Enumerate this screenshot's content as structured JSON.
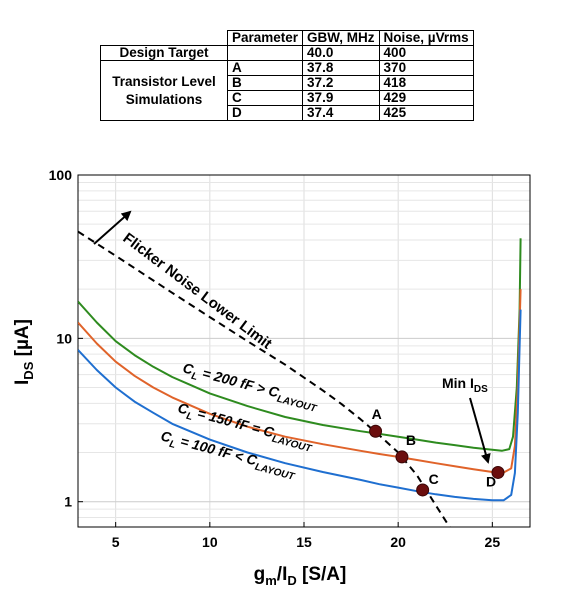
{
  "table": {
    "headers": [
      "",
      "Parameter",
      "GBW, MHz",
      "Noise, µVrms"
    ],
    "design_target": {
      "label": "Design Target",
      "parameter": "",
      "gbw": "40.0",
      "noise": "400"
    },
    "sim_label_line1": "Transistor Level",
    "sim_label_line2": "Simulations",
    "rows": [
      {
        "parameter": "A",
        "gbw": "37.8",
        "noise": "370"
      },
      {
        "parameter": "B",
        "gbw": "37.2",
        "noise": "418"
      },
      {
        "parameter": "C",
        "gbw": "37.9",
        "noise": "429"
      },
      {
        "parameter": "D",
        "gbw": "37.4",
        "noise": "425"
      }
    ]
  },
  "chart_data": {
    "type": "line",
    "xlabel": {
      "main": "g",
      "sub1": "m",
      "mid": "/I",
      "sub2": "D",
      "tail": " [S/A]"
    },
    "ylabel": {
      "main": "I",
      "sub": "DS",
      "tail": " [µA]"
    },
    "xlim": [
      3,
      27
    ],
    "ylim": [
      0.7,
      100
    ],
    "yscale": "log",
    "grid": true,
    "xticks": [
      5,
      10,
      15,
      20,
      25
    ],
    "yticks": [
      {
        "v": 1,
        "label": "1"
      },
      {
        "v": 10,
        "label": "10"
      },
      {
        "v": 100,
        "label": "100"
      }
    ],
    "series": [
      {
        "id": "cl200",
        "color": "#2e8b1f",
        "label": {
          "pre": "C",
          "sub1": "L",
          "mid": " = 200 fF > C",
          "sub2": "LAYOUT"
        },
        "x": [
          3,
          4,
          5,
          6,
          7,
          8,
          10,
          12,
          14,
          16,
          18,
          19,
          20,
          21,
          22,
          23,
          24,
          25,
          25.5,
          25.9,
          26.1,
          26.3,
          26.45,
          26.5
        ],
        "y": [
          16.8,
          12.5,
          9.6,
          7.9,
          6.7,
          5.8,
          4.6,
          3.85,
          3.3,
          2.95,
          2.7,
          2.6,
          2.5,
          2.4,
          2.3,
          2.22,
          2.14,
          2.08,
          2.05,
          2.1,
          2.5,
          5.0,
          15.0,
          41.0
        ]
      },
      {
        "id": "cl150",
        "color": "#e0632a",
        "label": {
          "pre": "C",
          "sub1": "L",
          "mid": " = 150 fF = C",
          "sub2": "LAYOUT"
        },
        "x": [
          3,
          4,
          5,
          6,
          7,
          8,
          10,
          12,
          14,
          16,
          18,
          19,
          20,
          21,
          22,
          23,
          24,
          25,
          25.6,
          26.0,
          26.2,
          26.35,
          26.5
        ],
        "y": [
          12.5,
          9.3,
          7.2,
          5.9,
          5.0,
          4.35,
          3.45,
          2.88,
          2.5,
          2.25,
          2.05,
          1.96,
          1.88,
          1.8,
          1.72,
          1.65,
          1.58,
          1.52,
          1.51,
          1.6,
          2.2,
          5.0,
          20.0
        ]
      },
      {
        "id": "cl100",
        "color": "#1f6fd0",
        "label": {
          "pre": "C",
          "sub1": "L",
          "mid": " = 100 fF < C",
          "sub2": "LAYOUT"
        },
        "x": [
          3,
          4,
          5,
          6,
          7,
          8,
          10,
          12,
          14,
          16,
          18,
          19,
          20,
          21,
          22,
          23,
          24,
          25,
          25.6,
          26.0,
          26.2,
          26.35,
          26.5
        ],
        "y": [
          8.5,
          6.4,
          5.0,
          4.1,
          3.5,
          3.0,
          2.4,
          2.0,
          1.72,
          1.52,
          1.36,
          1.28,
          1.22,
          1.16,
          1.11,
          1.07,
          1.04,
          1.02,
          1.02,
          1.1,
          1.5,
          3.5,
          15.0
        ]
      },
      {
        "id": "flicker",
        "color": "#000000",
        "dash": true,
        "x": [
          3,
          5,
          8,
          10,
          12,
          14,
          16,
          17,
          18,
          19,
          20,
          21,
          22,
          22.8
        ],
        "y": [
          45,
          32,
          19,
          13.5,
          9.6,
          6.9,
          4.8,
          3.95,
          3.2,
          2.55,
          2.0,
          1.45,
          0.95,
          0.68
        ]
      }
    ],
    "points": [
      {
        "label": "A",
        "x": 18.8,
        "y": 2.7
      },
      {
        "label": "B",
        "x": 20.2,
        "y": 1.88
      },
      {
        "label": "C",
        "x": 21.3,
        "y": 1.18
      },
      {
        "label": "D",
        "x": 25.3,
        "y": 1.51
      }
    ],
    "annotations": {
      "flicker": "Flicker Noise Lower Limit",
      "min_ids": {
        "main": "Min I",
        "sub": "DS"
      }
    }
  }
}
